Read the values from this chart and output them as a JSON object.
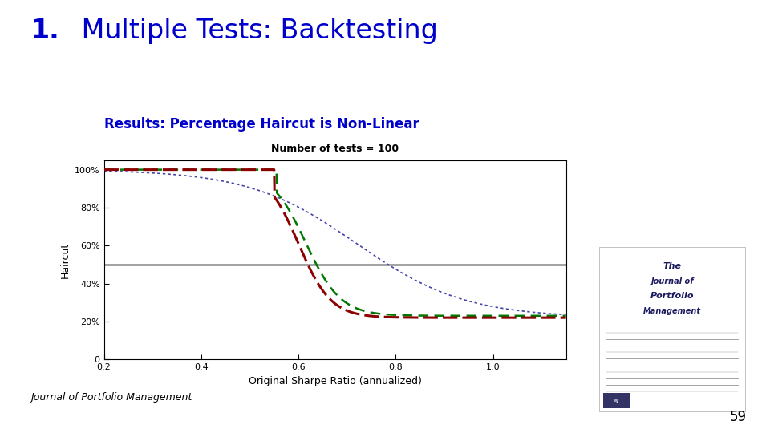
{
  "title_number": "1.",
  "title_rest": " Multiple Tests: Backtesting",
  "subtitle": "Results: Percentage Haircut is Non-Linear",
  "chart_annotation": "Number of tests = 100",
  "xlabel": "Original Sharpe Ratio (annualized)",
  "ylabel": "Haircut",
  "xlim": [
    0.2,
    1.15
  ],
  "ylim": [
    0,
    1.05
  ],
  "xticks": [
    0.2,
    0.4,
    0.6,
    0.8,
    1.0
  ],
  "ytick_labels": [
    "0",
    "20%",
    "40%",
    "60%",
    "80%",
    "100%"
  ],
  "ytick_values": [
    0,
    0.2,
    0.4,
    0.6,
    0.8,
    1.0
  ],
  "hline_y": 0.5,
  "hline_color": "#999999",
  "line_dotted_color": "#4444aa",
  "line_darkred_color": "#8B0000",
  "line_green_color": "#007700",
  "page_number": "59",
  "journal_text": "Journal of Portfolio Management",
  "title_color": "#0000CC",
  "subtitle_color": "#0000CC",
  "background_color": "#ffffff",
  "chart_bg": "#ffffff",
  "journal_cover_bg": "#dde8f0"
}
